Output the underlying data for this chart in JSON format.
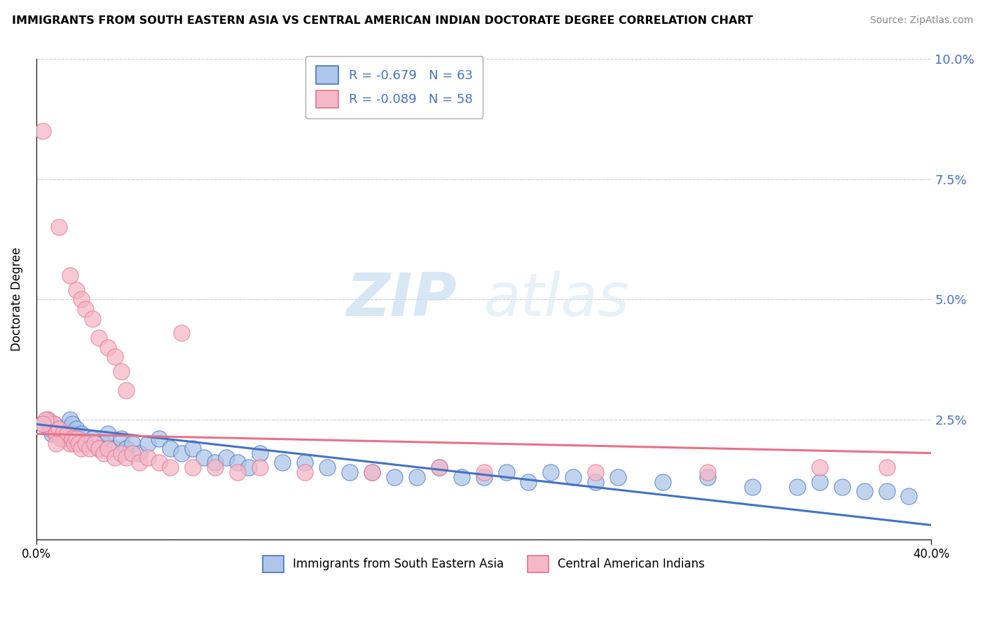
{
  "title": "IMMIGRANTS FROM SOUTH EASTERN ASIA VS CENTRAL AMERICAN INDIAN DOCTORATE DEGREE CORRELATION CHART",
  "source": "Source: ZipAtlas.com",
  "ylabel": "Doctorate Degree",
  "xmin": 0.0,
  "xmax": 0.4,
  "ymin": 0.0,
  "ymax": 0.1,
  "yticks": [
    0.0,
    0.025,
    0.05,
    0.075,
    0.1
  ],
  "ytick_labels": [
    "",
    "2.5%",
    "5.0%",
    "7.5%",
    "10.0%"
  ],
  "legend_r1": "-0.679",
  "legend_n1": "63",
  "legend_r2": "-0.089",
  "legend_n2": "58",
  "watermark_zip": "ZIP",
  "watermark_atlas": "atlas",
  "color_blue": "#AEC6E8",
  "color_pink": "#F4B8C8",
  "line_color_blue": "#4472C4",
  "line_color_pink": "#E8718A",
  "scatter_blue": [
    [
      0.003,
      0.024
    ],
    [
      0.005,
      0.025
    ],
    [
      0.006,
      0.023
    ],
    [
      0.007,
      0.022
    ],
    [
      0.008,
      0.024
    ],
    [
      0.009,
      0.022
    ],
    [
      0.01,
      0.023
    ],
    [
      0.011,
      0.022
    ],
    [
      0.012,
      0.021
    ],
    [
      0.013,
      0.023
    ],
    [
      0.014,
      0.022
    ],
    [
      0.015,
      0.025
    ],
    [
      0.016,
      0.024
    ],
    [
      0.017,
      0.022
    ],
    [
      0.018,
      0.023
    ],
    [
      0.019,
      0.021
    ],
    [
      0.02,
      0.022
    ],
    [
      0.022,
      0.02
    ],
    [
      0.025,
      0.021
    ],
    [
      0.028,
      0.019
    ],
    [
      0.03,
      0.02
    ],
    [
      0.032,
      0.022
    ],
    [
      0.035,
      0.019
    ],
    [
      0.038,
      0.021
    ],
    [
      0.04,
      0.019
    ],
    [
      0.043,
      0.02
    ],
    [
      0.046,
      0.018
    ],
    [
      0.05,
      0.02
    ],
    [
      0.055,
      0.021
    ],
    [
      0.06,
      0.019
    ],
    [
      0.065,
      0.018
    ],
    [
      0.07,
      0.019
    ],
    [
      0.075,
      0.017
    ],
    [
      0.08,
      0.016
    ],
    [
      0.085,
      0.017
    ],
    [
      0.09,
      0.016
    ],
    [
      0.095,
      0.015
    ],
    [
      0.1,
      0.018
    ],
    [
      0.11,
      0.016
    ],
    [
      0.12,
      0.016
    ],
    [
      0.13,
      0.015
    ],
    [
      0.14,
      0.014
    ],
    [
      0.15,
      0.014
    ],
    [
      0.16,
      0.013
    ],
    [
      0.17,
      0.013
    ],
    [
      0.18,
      0.015
    ],
    [
      0.19,
      0.013
    ],
    [
      0.2,
      0.013
    ],
    [
      0.21,
      0.014
    ],
    [
      0.22,
      0.012
    ],
    [
      0.23,
      0.014
    ],
    [
      0.24,
      0.013
    ],
    [
      0.25,
      0.012
    ],
    [
      0.26,
      0.013
    ],
    [
      0.28,
      0.012
    ],
    [
      0.3,
      0.013
    ],
    [
      0.32,
      0.011
    ],
    [
      0.34,
      0.011
    ],
    [
      0.35,
      0.012
    ],
    [
      0.36,
      0.011
    ],
    [
      0.37,
      0.01
    ],
    [
      0.38,
      0.01
    ],
    [
      0.39,
      0.009
    ]
  ],
  "scatter_pink": [
    [
      0.003,
      0.085
    ],
    [
      0.01,
      0.065
    ],
    [
      0.015,
      0.055
    ],
    [
      0.018,
      0.052
    ],
    [
      0.02,
      0.05
    ],
    [
      0.022,
      0.048
    ],
    [
      0.025,
      0.046
    ],
    [
      0.028,
      0.042
    ],
    [
      0.032,
      0.04
    ],
    [
      0.035,
      0.038
    ],
    [
      0.038,
      0.035
    ],
    [
      0.005,
      0.025
    ],
    [
      0.006,
      0.024
    ],
    [
      0.007,
      0.023
    ],
    [
      0.008,
      0.024
    ],
    [
      0.009,
      0.022
    ],
    [
      0.01,
      0.023
    ],
    [
      0.011,
      0.021
    ],
    [
      0.012,
      0.022
    ],
    [
      0.013,
      0.021
    ],
    [
      0.014,
      0.022
    ],
    [
      0.015,
      0.02
    ],
    [
      0.016,
      0.021
    ],
    [
      0.017,
      0.02
    ],
    [
      0.018,
      0.021
    ],
    [
      0.019,
      0.02
    ],
    [
      0.02,
      0.019
    ],
    [
      0.022,
      0.02
    ],
    [
      0.024,
      0.019
    ],
    [
      0.026,
      0.02
    ],
    [
      0.028,
      0.019
    ],
    [
      0.03,
      0.018
    ],
    [
      0.032,
      0.019
    ],
    [
      0.035,
      0.017
    ],
    [
      0.038,
      0.018
    ],
    [
      0.04,
      0.017
    ],
    [
      0.043,
      0.018
    ],
    [
      0.046,
      0.016
    ],
    [
      0.05,
      0.017
    ],
    [
      0.055,
      0.016
    ],
    [
      0.06,
      0.015
    ],
    [
      0.07,
      0.015
    ],
    [
      0.08,
      0.015
    ],
    [
      0.09,
      0.014
    ],
    [
      0.1,
      0.015
    ],
    [
      0.12,
      0.014
    ],
    [
      0.15,
      0.014
    ],
    [
      0.18,
      0.015
    ],
    [
      0.2,
      0.014
    ],
    [
      0.25,
      0.014
    ],
    [
      0.3,
      0.014
    ],
    [
      0.35,
      0.015
    ],
    [
      0.38,
      0.015
    ],
    [
      0.04,
      0.031
    ],
    [
      0.065,
      0.043
    ],
    [
      0.004,
      0.025
    ],
    [
      0.003,
      0.024
    ],
    [
      0.009,
      0.02
    ]
  ],
  "blue_line_x": [
    0.0,
    0.4
  ],
  "blue_line_y": [
    0.024,
    0.003
  ],
  "pink_line_x": [
    0.0,
    0.4
  ],
  "pink_line_y": [
    0.022,
    0.018
  ]
}
